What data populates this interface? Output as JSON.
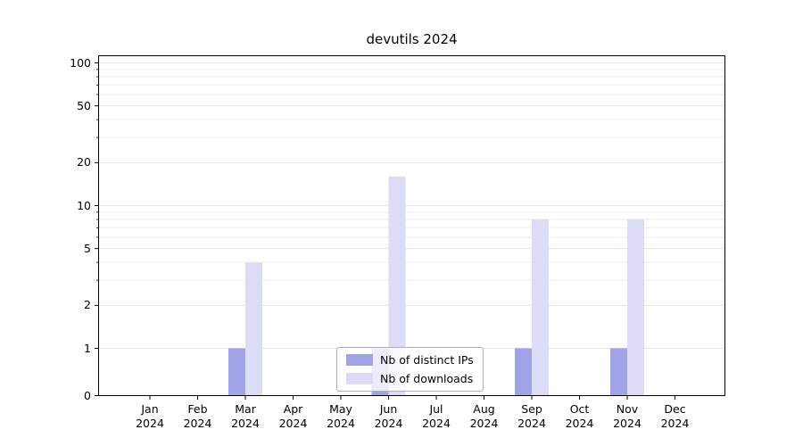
{
  "chart_data": {
    "type": "bar",
    "title": "devutils 2024",
    "categories": [
      "Jan 2024",
      "Feb 2024",
      "Mar 2024",
      "Apr 2024",
      "May 2024",
      "Jun 2024",
      "Jul 2024",
      "Aug 2024",
      "Sep 2024",
      "Oct 2024",
      "Nov 2024",
      "Dec 2024"
    ],
    "series": [
      {
        "name": "Nb of distinct IPs",
        "color": "#a2a2e6",
        "values": [
          0,
          0,
          1,
          0,
          0,
          1,
          0,
          0,
          1,
          0,
          1,
          0
        ]
      },
      {
        "name": "Nb of downloads",
        "color": "#dcdcf7",
        "values": [
          0,
          0,
          4,
          0,
          0,
          16,
          0,
          0,
          8,
          0,
          8,
          0
        ]
      }
    ],
    "yscale": "symlog",
    "yticks": [
      0,
      1,
      2,
      5,
      10,
      20,
      50,
      100
    ],
    "ylim": [
      0,
      110
    ],
    "xlabel": "",
    "ylabel": "",
    "grid": true,
    "legend_position": "lower center",
    "colors": {
      "gridline_major": "#e2e2e2",
      "gridline_minor": "#eeeeee",
      "axis": "#000000"
    }
  }
}
